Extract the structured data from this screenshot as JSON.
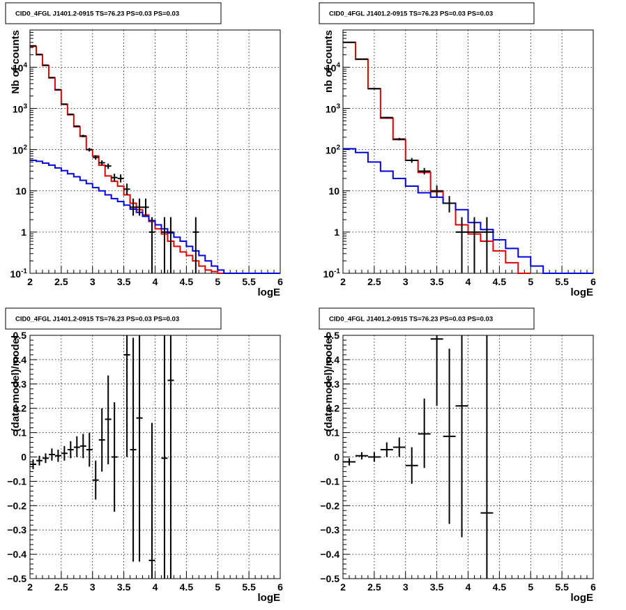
{
  "chart_data": [
    {
      "type": "line",
      "title": "CID0_4FGL J1401.2-0915 TS=76.23 PS=0.03 PS=0.03",
      "xlabel": "logE",
      "ylabel": "Nb of counts",
      "xlim": [
        2,
        6
      ],
      "ylim": [
        0.1,
        80000
      ],
      "yscale": "log",
      "grid": true,
      "x_ticks": [
        "2",
        "2.5",
        "3",
        "3.5",
        "4",
        "4.5",
        "5",
        "5.5",
        "6"
      ],
      "y_ticks": [
        "10^-1",
        "1",
        "10",
        "10^2",
        "10^3",
        "10^4"
      ],
      "series": [
        {
          "style": "step",
          "color": "#e00000",
          "bin_edges": [
            2.0,
            2.1,
            2.2,
            2.3,
            2.4,
            2.5,
            2.6,
            2.7,
            2.8,
            2.9,
            3.0,
            3.1,
            3.2,
            3.3,
            3.4,
            3.5,
            3.6,
            3.7,
            3.8,
            3.9,
            4.0,
            4.1,
            4.2,
            4.3,
            4.4,
            4.5,
            4.6,
            4.7,
            4.8,
            4.9,
            5.0,
            5.1
          ],
          "values": [
            32000,
            20000,
            11000,
            5500,
            2800,
            1250,
            700,
            360,
            210,
            100,
            70,
            42,
            23,
            17,
            13,
            8,
            5,
            3.5,
            2.6,
            1.8,
            1.2,
            0.9,
            0.6,
            0.45,
            0.33,
            0.27,
            0.2,
            0.15,
            0.12,
            0.11,
            0.1
          ]
        },
        {
          "style": "step",
          "color": "#0000e0",
          "bin_edges": [
            2.0,
            2.1,
            2.2,
            2.3,
            2.4,
            2.5,
            2.6,
            2.7,
            2.8,
            2.9,
            3.0,
            3.1,
            3.2,
            3.3,
            3.4,
            3.5,
            3.6,
            3.7,
            3.8,
            3.9,
            4.0,
            4.1,
            4.2,
            4.3,
            4.4,
            4.5,
            4.6,
            4.7,
            4.8,
            4.9,
            5.0,
            5.1,
            5.2,
            5.3,
            5.4,
            5.5,
            5.6,
            5.7,
            5.8,
            5.9,
            6.0
          ],
          "values": [
            55,
            52,
            47,
            42,
            36,
            31,
            26,
            22,
            18,
            15,
            12,
            10,
            8,
            6.5,
            5.5,
            4.5,
            3.6,
            3,
            2.4,
            1.9,
            1.5,
            1.2,
            0.95,
            0.75,
            0.6,
            0.45,
            0.35,
            0.27,
            0.2,
            0.15,
            0.12,
            0.1,
            0.1,
            0.1,
            0.1,
            0.1,
            0.1,
            0.1,
            0.1,
            0.1
          ]
        },
        {
          "style": "errorbar",
          "color": "#000000",
          "points": [
            {
              "x": 2.05,
              "y": 33000,
              "xerr": 0.05,
              "ylo": 32000,
              "yhi": 34000
            },
            {
              "x": 2.15,
              "y": 20500,
              "xerr": 0.05,
              "ylo": 20000,
              "yhi": 21000
            },
            {
              "x": 2.25,
              "y": 11200,
              "xerr": 0.05,
              "ylo": 11000,
              "yhi": 11500
            },
            {
              "x": 2.35,
              "y": 5600,
              "xerr": 0.05,
              "ylo": 5450,
              "yhi": 5750
            },
            {
              "x": 2.45,
              "y": 2850,
              "xerr": 0.05,
              "ylo": 2750,
              "yhi": 2950
            },
            {
              "x": 2.55,
              "y": 1270,
              "xerr": 0.05,
              "ylo": 1220,
              "yhi": 1320
            },
            {
              "x": 2.65,
              "y": 720,
              "xerr": 0.05,
              "ylo": 690,
              "yhi": 750
            },
            {
              "x": 2.75,
              "y": 370,
              "xerr": 0.05,
              "ylo": 350,
              "yhi": 390
            },
            {
              "x": 2.85,
              "y": 215,
              "xerr": 0.05,
              "ylo": 200,
              "yhi": 230
            },
            {
              "x": 2.95,
              "y": 100,
              "xerr": 0.05,
              "ylo": 90,
              "yhi": 110
            },
            {
              "x": 3.05,
              "y": 65,
              "xerr": 0.05,
              "ylo": 57,
              "yhi": 73
            },
            {
              "x": 3.15,
              "y": 48,
              "xerr": 0.05,
              "ylo": 41,
              "yhi": 55
            },
            {
              "x": 3.25,
              "y": 40,
              "xerr": 0.05,
              "ylo": 34,
              "yhi": 46
            },
            {
              "x": 3.35,
              "y": 21,
              "xerr": 0.05,
              "ylo": 17,
              "yhi": 26
            },
            {
              "x": 3.45,
              "y": 20,
              "xerr": 0.05,
              "ylo": 16,
              "yhi": 25
            },
            {
              "x": 3.55,
              "y": 11,
              "xerr": 0.05,
              "ylo": 8,
              "yhi": 15
            },
            {
              "x": 3.65,
              "y": 4,
              "xerr": 0.05,
              "ylo": 2.5,
              "yhi": 6.5
            },
            {
              "x": 3.75,
              "y": 4,
              "xerr": 0.05,
              "ylo": 2.5,
              "yhi": 6.5
            },
            {
              "x": 3.85,
              "y": 4,
              "xerr": 0.05,
              "ylo": 2.5,
              "yhi": 6.5
            },
            {
              "x": 3.95,
              "y": 1,
              "xerr": 0.05,
              "ylo": 0.1,
              "yhi": 2.3
            },
            {
              "x": 4.15,
              "y": 1,
              "xerr": 0.05,
              "ylo": 0.1,
              "yhi": 2.3
            },
            {
              "x": 4.25,
              "y": 1,
              "xerr": 0.05,
              "ylo": 0.1,
              "yhi": 2.3
            },
            {
              "x": 4.65,
              "y": 1,
              "xerr": 0.05,
              "ylo": 0.1,
              "yhi": 2.3
            }
          ]
        }
      ]
    },
    {
      "type": "line",
      "title": "CID0_4FGL J1401.2-0915 TS=76.23 PS=0.03 PS=0.03",
      "xlabel": "logE",
      "ylabel": "nb of counts",
      "xlim": [
        2,
        6
      ],
      "ylim": [
        0.1,
        80000
      ],
      "yscale": "log",
      "grid": true,
      "x_ticks": [
        "2",
        "2.5",
        "3",
        "3.5",
        "4",
        "4.5",
        "5",
        "5.5",
        "6"
      ],
      "y_ticks": [
        "10^-1",
        "1",
        "10",
        "10^2",
        "10^3",
        "10^4"
      ],
      "series": [
        {
          "style": "step",
          "color": "#e00000",
          "bin_edges": [
            2.0,
            2.2,
            2.4,
            2.6,
            2.8,
            3.0,
            3.2,
            3.4,
            3.6,
            3.8,
            4.0,
            4.2,
            4.4,
            4.6,
            4.8,
            5.0
          ],
          "values": [
            40000,
            15500,
            3000,
            580,
            175,
            55,
            28,
            9.5,
            5,
            1.5,
            0.9,
            0.6,
            0.35,
            0.18,
            0.1
          ]
        },
        {
          "style": "step",
          "color": "#0000e0",
          "bin_edges": [
            2.0,
            2.2,
            2.4,
            2.6,
            2.8,
            3.0,
            3.2,
            3.4,
            3.6,
            3.8,
            4.0,
            4.2,
            4.4,
            4.6,
            4.8,
            5.0,
            5.2,
            5.4,
            5.6,
            5.8,
            6.0
          ],
          "values": [
            105,
            85,
            50,
            30,
            20,
            13,
            9,
            7,
            5,
            3.5,
            1.7,
            1.15,
            0.65,
            0.4,
            0.25,
            0.15,
            0.1,
            0.1,
            0.1,
            0.1
          ]
        },
        {
          "style": "errorbar",
          "color": "#000000",
          "points": [
            {
              "x": 2.1,
              "y": 40000,
              "xerr": 0.1,
              "ylo": 39000,
              "yhi": 41000
            },
            {
              "x": 2.3,
              "y": 15700,
              "xerr": 0.1,
              "ylo": 15300,
              "yhi": 16100
            },
            {
              "x": 2.5,
              "y": 3000,
              "xerr": 0.1,
              "ylo": 2900,
              "yhi": 3100
            },
            {
              "x": 2.7,
              "y": 600,
              "xerr": 0.1,
              "ylo": 575,
              "yhi": 625
            },
            {
              "x": 2.9,
              "y": 180,
              "xerr": 0.1,
              "ylo": 167,
              "yhi": 193
            },
            {
              "x": 3.1,
              "y": 55,
              "xerr": 0.1,
              "ylo": 48,
              "yhi": 63
            },
            {
              "x": 3.3,
              "y": 30,
              "xerr": 0.1,
              "ylo": 25,
              "yhi": 36
            },
            {
              "x": 3.5,
              "y": 10,
              "xerr": 0.1,
              "ylo": 7,
              "yhi": 13.5
            },
            {
              "x": 3.7,
              "y": 5,
              "xerr": 0.1,
              "ylo": 3,
              "yhi": 7.5
            },
            {
              "x": 3.9,
              "y": 1,
              "xerr": 0.1,
              "ylo": 0.1,
              "yhi": 2.3
            },
            {
              "x": 4.1,
              "y": 1,
              "xerr": 0.1,
              "ylo": 0.1,
              "yhi": 2.3
            },
            {
              "x": 4.3,
              "y": 1,
              "xerr": 0.1,
              "ylo": 0.1,
              "yhi": 2.3
            }
          ]
        }
      ]
    },
    {
      "type": "scatter",
      "title": "CID0_4FGL J1401.2-0915 TS=76.23 PS=0.03 PS=0.03",
      "xlabel": "logE",
      "ylabel": "(data-model)/model",
      "xlim": [
        2,
        6
      ],
      "ylim": [
        -0.5,
        0.5
      ],
      "grid": true,
      "x_ticks": [
        "2",
        "2.5",
        "3",
        "3.5",
        "4",
        "4.5",
        "5",
        "5.5",
        "6"
      ],
      "y_ticks": [
        "−0.5",
        "−0.4",
        "−0.3",
        "−0.2",
        "−0.1",
        "0",
        "0.1",
        "0.2",
        "0.3",
        "0.4",
        "0.5"
      ],
      "series": [
        {
          "style": "errorbar",
          "color": "#000000",
          "points": [
            {
              "x": 2.05,
              "y": -0.03,
              "xerr": 0.05,
              "ylo": -0.05,
              "yhi": -0.01
            },
            {
              "x": 2.15,
              "y": -0.015,
              "xerr": 0.05,
              "ylo": -0.035,
              "yhi": 0.005
            },
            {
              "x": 2.25,
              "y": -0.005,
              "xerr": 0.05,
              "ylo": -0.025,
              "yhi": 0.015
            },
            {
              "x": 2.35,
              "y": 0.01,
              "xerr": 0.05,
              "ylo": -0.015,
              "yhi": 0.035
            },
            {
              "x": 2.45,
              "y": 0.005,
              "xerr": 0.05,
              "ylo": -0.02,
              "yhi": 0.03
            },
            {
              "x": 2.55,
              "y": 0.015,
              "xerr": 0.05,
              "ylo": -0.015,
              "yhi": 0.045
            },
            {
              "x": 2.65,
              "y": 0.03,
              "xerr": 0.05,
              "ylo": -0.005,
              "yhi": 0.065
            },
            {
              "x": 2.75,
              "y": 0.04,
              "xerr": 0.05,
              "ylo": 0.0,
              "yhi": 0.085
            },
            {
              "x": 2.85,
              "y": 0.045,
              "xerr": 0.05,
              "ylo": -0.005,
              "yhi": 0.095
            },
            {
              "x": 2.95,
              "y": 0.03,
              "xerr": 0.05,
              "ylo": -0.04,
              "yhi": 0.1
            },
            {
              "x": 3.05,
              "y": -0.095,
              "xerr": 0.05,
              "ylo": -0.175,
              "yhi": -0.015
            },
            {
              "x": 3.15,
              "y": 0.07,
              "xerr": 0.05,
              "ylo": -0.06,
              "yhi": 0.2
            },
            {
              "x": 3.25,
              "y": 0.155,
              "xerr": 0.05,
              "ylo": -0.03,
              "yhi": 0.335
            },
            {
              "x": 3.35,
              "y": 0.0,
              "xerr": 0.05,
              "ylo": -0.225,
              "yhi": 0.225
            },
            {
              "x": 3.55,
              "y": 0.42,
              "xerr": 0.05,
              "ylo": 0.0,
              "yhi": 0.5
            },
            {
              "x": 3.65,
              "y": 0.03,
              "xerr": 0.05,
              "ylo": -0.43,
              "yhi": 0.49
            },
            {
              "x": 3.75,
              "y": 0.16,
              "xerr": 0.05,
              "ylo": -0.43,
              "yhi": 0.5
            },
            {
              "x": 3.95,
              "y": -0.425,
              "xerr": 0.05,
              "ylo": -0.5,
              "yhi": 0.14
            },
            {
              "x": 4.15,
              "y": -0.005,
              "xerr": 0.05,
              "ylo": -0.5,
              "yhi": 0.5
            },
            {
              "x": 4.25,
              "y": 0.315,
              "xerr": 0.05,
              "ylo": -0.5,
              "yhi": 0.5
            }
          ]
        }
      ]
    },
    {
      "type": "scatter",
      "title": "CID0_4FGL J1401.2-0915 TS=76.23 PS=0.03 PS=0.03",
      "xlabel": "logE",
      "ylabel": "(data-model)/model",
      "xlim": [
        2,
        6
      ],
      "ylim": [
        -0.5,
        0.5
      ],
      "grid": true,
      "x_ticks": [
        "2",
        "2.5",
        "3",
        "3.5",
        "4",
        "4.5",
        "5",
        "5.5",
        "6"
      ],
      "y_ticks": [
        "−0.5",
        "−0.4",
        "−0.3",
        "−0.2",
        "−0.1",
        "0",
        "0.1",
        "0.2",
        "0.3",
        "0.4",
        "0.5"
      ],
      "series": [
        {
          "style": "errorbar",
          "color": "#000000",
          "points": [
            {
              "x": 2.1,
              "y": -0.02,
              "xerr": 0.1,
              "ylo": -0.035,
              "yhi": -0.005
            },
            {
              "x": 2.3,
              "y": 0.005,
              "xerr": 0.1,
              "ylo": -0.01,
              "yhi": 0.02
            },
            {
              "x": 2.5,
              "y": 0.0,
              "xerr": 0.1,
              "ylo": -0.02,
              "yhi": 0.02
            },
            {
              "x": 2.7,
              "y": 0.03,
              "xerr": 0.1,
              "ylo": 0.0,
              "yhi": 0.06
            },
            {
              "x": 2.9,
              "y": 0.04,
              "xerr": 0.1,
              "ylo": 0.0,
              "yhi": 0.08
            },
            {
              "x": 3.1,
              "y": -0.035,
              "xerr": 0.1,
              "ylo": -0.11,
              "yhi": 0.04
            },
            {
              "x": 3.3,
              "y": 0.095,
              "xerr": 0.1,
              "ylo": -0.045,
              "yhi": 0.24
            },
            {
              "x": 3.5,
              "y": 0.485,
              "xerr": 0.1,
              "ylo": 0.21,
              "yhi": 0.5
            },
            {
              "x": 3.7,
              "y": 0.085,
              "xerr": 0.1,
              "ylo": -0.275,
              "yhi": 0.445
            },
            {
              "x": 3.9,
              "y": 0.21,
              "xerr": 0.1,
              "ylo": -0.33,
              "yhi": 0.5
            },
            {
              "x": 4.3,
              "y": -0.23,
              "xerr": 0.1,
              "ylo": -0.5,
              "yhi": 0.5
            }
          ]
        }
      ]
    }
  ]
}
